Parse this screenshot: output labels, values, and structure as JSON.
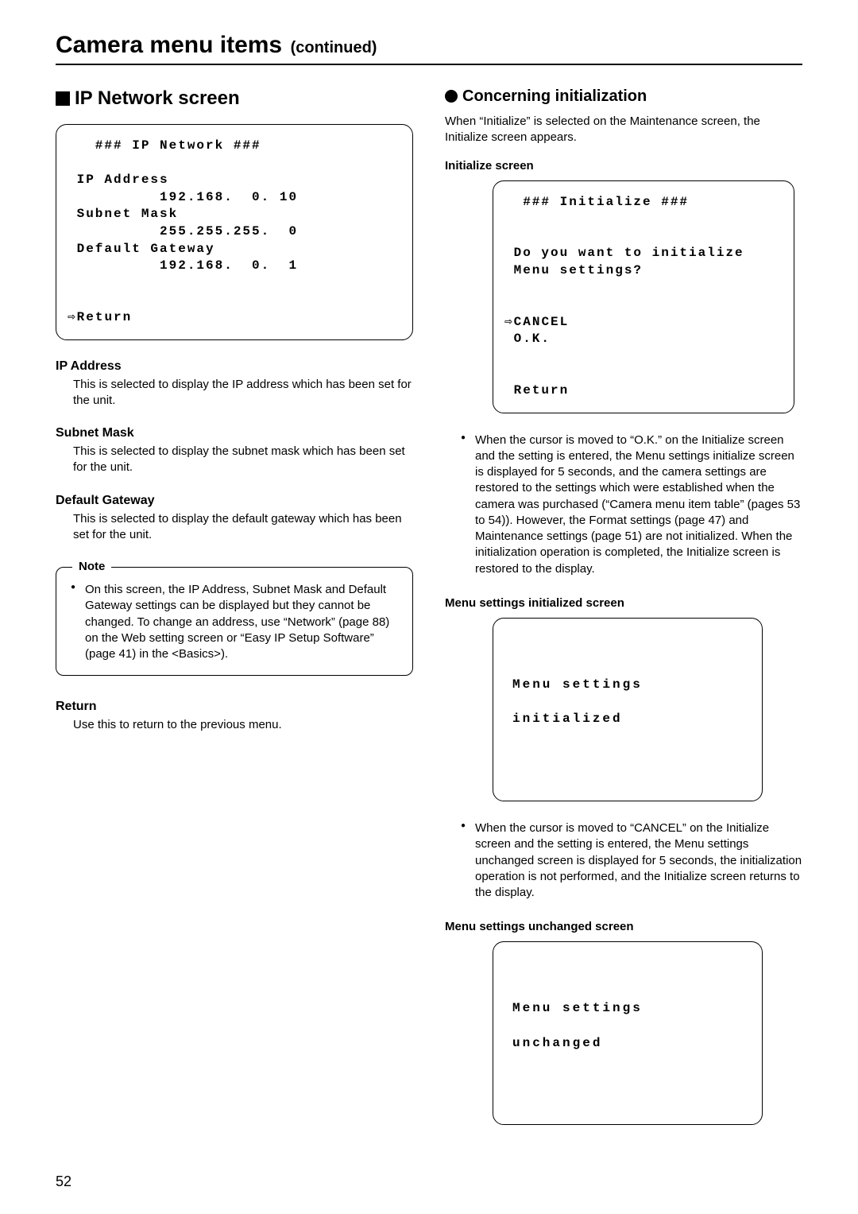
{
  "page": {
    "title": "Camera menu items",
    "title_cont": "(continued)",
    "number": "52"
  },
  "left": {
    "heading": "IP Network screen",
    "monitor": "   ### IP Network ###\n\n IP Address\n          192.168.  0. 10\n Subnet Mask\n          255.255.255.  0\n Default Gateway\n          192.168.  0.  1\n\n\n⇨Return",
    "ip_addr": {
      "title": "IP Address",
      "body": "This is selected to display the IP address which has been set for the unit."
    },
    "subnet": {
      "title": "Subnet Mask",
      "body": "This is selected to display the subnet mask which has been set for the unit."
    },
    "gateway": {
      "title": "Default Gateway",
      "body": "This is selected to display the default gateway which has been set for the unit."
    },
    "note": {
      "legend": "Note",
      "body": "On this screen, the IP Address, Subnet Mask and Default Gateway settings can be displayed but they cannot be changed.\nTo change an address, use “Network” (page 88) on the Web setting screen or “Easy IP Setup Software” (page 41) in the <Basics>)."
    },
    "ret": {
      "title": "Return",
      "body": "Use this to return to the previous menu."
    }
  },
  "right": {
    "heading": "Concerning initialization",
    "intro": "When “Initialize” is selected on the Maintenance screen, the Initialize screen appears.",
    "init_label": "Initialize screen",
    "init_monitor": "  ### Initialize ###\n\n\n Do you want to initialize\n Menu settings?\n\n\n⇨CANCEL\n O.K.\n\n\n Return",
    "bullet1": "When the cursor is moved to “O.K.” on the Initialize screen and the setting is entered, the Menu settings initialize screen is displayed for 5 seconds, and the camera settings are restored to the settings which were established when the camera was purchased (“Camera menu item table” (pages 53 to 54)).\nHowever, the Format settings (page 47) and Maintenance settings (page 51) are not initialized.\nWhen the initialization operation is completed, the Initialize screen is restored to the display.",
    "initd_label": "Menu settings initialized screen",
    "initd_monitor": "\n\nMenu settings\n\ninitialized\n\n\n",
    "bullet2": "When the cursor is moved to “CANCEL” on the Initialize screen and the setting is entered, the Menu settings unchanged screen is displayed for 5 seconds, the initialization operation is not performed, and the Initialize screen returns to the display.",
    "unchg_label": "Menu settings unchanged screen",
    "unchg_monitor": "\n\nMenu settings\n\nunchanged\n\n\n"
  }
}
